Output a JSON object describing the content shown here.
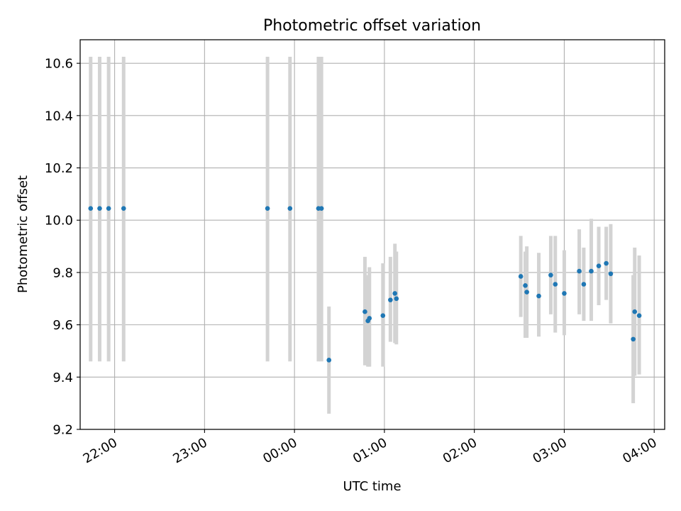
{
  "chart_data": {
    "type": "scatter",
    "title": "Photometric offset variation",
    "xlabel": "UTC time",
    "ylabel": "Photometric offset",
    "x_unit": "UTC time (hours)",
    "xlim": [
      "21:37",
      "04:07"
    ],
    "ylim": [
      9.2,
      10.69
    ],
    "grid": true,
    "x_ticks": [
      "22:00",
      "23:00",
      "00:00",
      "01:00",
      "02:00",
      "03:00",
      "04:00"
    ],
    "y_ticks": [
      "9.2",
      "9.4",
      "9.6",
      "9.8",
      "10.0",
      "10.2",
      "10.4",
      "10.6"
    ],
    "marker_color": "#1f77b4",
    "errorbar_color": "#d3d3d3",
    "points": [
      {
        "x": "21:44",
        "y": 10.045,
        "ylow": 9.46,
        "yhigh": 10.625
      },
      {
        "x": "21:50",
        "y": 10.045,
        "ylow": 9.46,
        "yhigh": 10.625
      },
      {
        "x": "21:56",
        "y": 10.045,
        "ylow": 9.46,
        "yhigh": 10.625
      },
      {
        "x": "22:06",
        "y": 10.045,
        "ylow": 9.46,
        "yhigh": 10.625
      },
      {
        "x": "23:42",
        "y": 10.045,
        "ylow": 9.46,
        "yhigh": 10.625
      },
      {
        "x": "23:57",
        "y": 10.045,
        "ylow": 9.46,
        "yhigh": 10.625
      },
      {
        "x": "00:16",
        "y": 10.045,
        "ylow": 9.46,
        "yhigh": 10.625
      },
      {
        "x": "00:18",
        "y": 10.045,
        "ylow": 9.46,
        "yhigh": 10.625
      },
      {
        "x": "00:23",
        "y": 9.465,
        "ylow": 9.26,
        "yhigh": 9.67
      },
      {
        "x": "00:47",
        "y": 9.65,
        "ylow": 9.445,
        "yhigh": 9.86
      },
      {
        "x": "00:49",
        "y": 9.615,
        "ylow": 9.44,
        "yhigh": 9.79
      },
      {
        "x": "00:50",
        "y": 9.625,
        "ylow": 9.44,
        "yhigh": 9.82
      },
      {
        "x": "00:59",
        "y": 9.635,
        "ylow": 9.44,
        "yhigh": 9.835
      },
      {
        "x": "01:04",
        "y": 9.695,
        "ylow": 9.535,
        "yhigh": 9.86
      },
      {
        "x": "01:07",
        "y": 9.72,
        "ylow": 9.53,
        "yhigh": 9.91
      },
      {
        "x": "01:08",
        "y": 9.7,
        "ylow": 9.525,
        "yhigh": 9.88
      },
      {
        "x": "02:31",
        "y": 9.785,
        "ylow": 9.63,
        "yhigh": 9.94
      },
      {
        "x": "02:34",
        "y": 9.75,
        "ylow": 9.55,
        "yhigh": 9.88
      },
      {
        "x": "02:35",
        "y": 9.725,
        "ylow": 9.55,
        "yhigh": 9.9
      },
      {
        "x": "02:43",
        "y": 9.71,
        "ylow": 9.555,
        "yhigh": 9.875
      },
      {
        "x": "02:51",
        "y": 9.79,
        "ylow": 9.64,
        "yhigh": 9.94
      },
      {
        "x": "02:54",
        "y": 9.755,
        "ylow": 9.57,
        "yhigh": 9.94
      },
      {
        "x": "03:00",
        "y": 9.72,
        "ylow": 9.56,
        "yhigh": 9.885
      },
      {
        "x": "03:10",
        "y": 9.805,
        "ylow": 9.64,
        "yhigh": 9.965
      },
      {
        "x": "03:13",
        "y": 9.755,
        "ylow": 9.615,
        "yhigh": 9.895
      },
      {
        "x": "03:18",
        "y": 9.805,
        "ylow": 9.615,
        "yhigh": 10.005
      },
      {
        "x": "03:23",
        "y": 9.825,
        "ylow": 9.675,
        "yhigh": 9.975
      },
      {
        "x": "03:28",
        "y": 9.835,
        "ylow": 9.695,
        "yhigh": 9.975
      },
      {
        "x": "03:31",
        "y": 9.795,
        "ylow": 9.605,
        "yhigh": 9.985
      },
      {
        "x": "03:46",
        "y": 9.545,
        "ylow": 9.3,
        "yhigh": 9.79
      },
      {
        "x": "03:47",
        "y": 9.65,
        "ylow": 9.405,
        "yhigh": 9.895
      },
      {
        "x": "03:50",
        "y": 9.635,
        "ylow": 9.41,
        "yhigh": 9.865
      }
    ]
  }
}
